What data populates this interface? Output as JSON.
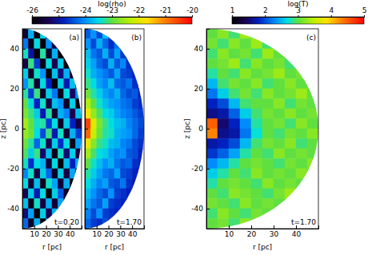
{
  "chart_data": [
    {
      "type": "heatmap",
      "label": "(a)",
      "annotation": "t=0.20",
      "x_label": "r [pc]",
      "y_label": "z [pc]",
      "xlim": [
        0,
        50
      ],
      "ylim": [
        -50,
        50
      ],
      "xticks": [
        10,
        20,
        30,
        40
      ],
      "yticks": [
        -40,
        -20,
        0,
        20,
        40
      ],
      "colorbar": {
        "label": "log(rho)",
        "range": [
          -26,
          -20
        ],
        "ticks": [
          -26,
          -25,
          -24,
          -23,
          -22,
          -21,
          -20
        ]
      },
      "x": [
        2.5,
        7.5,
        12.5,
        17.5,
        22.5,
        27.5,
        32.5,
        37.5,
        42.5,
        47.5
      ],
      "y": [
        47.5,
        42.5,
        37.5,
        32.5,
        27.5,
        22.5,
        17.5,
        12.5,
        7.5,
        2.5,
        -2.5,
        -7.5,
        -12.5,
        -17.5,
        -22.5,
        -27.5,
        -32.5,
        -37.5,
        -42.5,
        -47.5
      ],
      "cells": [
        [
          -25.6,
          -23.8,
          -25.9,
          -23.6,
          -25.2,
          null,
          null,
          null,
          null,
          null
        ],
        [
          -24.2,
          -25.8,
          -23.5,
          -25.9,
          -24.0,
          -25.5,
          -23.9,
          null,
          null,
          null
        ],
        [
          -23.4,
          -25.0,
          -25.9,
          -23.3,
          -25.7,
          -23.8,
          -25.9,
          -24.5,
          null,
          null
        ],
        [
          -25.5,
          -23.2,
          -24.6,
          -25.8,
          -23.5,
          -25.4,
          -23.6,
          -25.9,
          -23.9,
          null
        ],
        [
          -23.6,
          -25.7,
          -23.4,
          -24.0,
          -25.9,
          -23.7,
          -25.2,
          -23.8,
          -25.6,
          null
        ],
        [
          -24.0,
          -23.3,
          -25.6,
          -23.5,
          -24.8,
          -25.9,
          -23.6,
          -24.9,
          -23.7,
          -25.8
        ],
        [
          -23.3,
          -24.6,
          -23.2,
          -25.7,
          -23.6,
          -24.2,
          -25.8,
          -23.5,
          -25.3,
          -24.0
        ],
        [
          -23.0,
          -23.5,
          -24.8,
          -23.4,
          -25.5,
          -23.7,
          -24.0,
          -25.7,
          -23.6,
          -25.9
        ],
        [
          -22.8,
          -23.2,
          -23.6,
          -24.9,
          -23.3,
          -25.6,
          -23.8,
          -24.1,
          -25.4,
          -23.7
        ],
        [
          -22.5,
          -23.0,
          -23.4,
          -23.3,
          -24.6,
          -23.5,
          -25.7,
          -23.6,
          -24.8,
          -25.5
        ],
        [
          -22.6,
          -22.9,
          -23.5,
          -24.5,
          -23.2,
          -24.9,
          -23.4,
          -25.6,
          -23.8,
          -24.6
        ],
        [
          -22.9,
          -23.3,
          -24.3,
          -23.4,
          -25.4,
          -23.6,
          -24.7,
          -23.5,
          -25.8,
          -23.9
        ],
        [
          -23.1,
          -23.6,
          -23.2,
          -25.3,
          -23.7,
          -25.8,
          -23.4,
          -25.2,
          -23.6,
          -25.5
        ],
        [
          -23.4,
          -24.7,
          -23.5,
          -23.8,
          -25.6,
          -23.5,
          -25.9,
          -23.7,
          -24.8,
          -23.8
        ],
        [
          -24.1,
          -23.4,
          -25.5,
          -23.6,
          -24.3,
          -25.7,
          -23.6,
          -25.5,
          -23.9,
          -25.7
        ],
        [
          -23.5,
          -25.6,
          -23.7,
          -25.8,
          -23.4,
          -23.9,
          -25.6,
          -23.8,
          -25.9,
          null
        ],
        [
          -25.4,
          -23.6,
          -24.9,
          -23.5,
          -25.9,
          -23.6,
          -24.4,
          -25.7,
          -23.7,
          null
        ],
        [
          -23.7,
          -25.8,
          -23.4,
          -25.5,
          -23.8,
          -25.6,
          -23.9,
          -25.8,
          null,
          null
        ],
        [
          -25.2,
          -23.9,
          -25.9,
          -23.6,
          -25.4,
          -23.8,
          -25.9,
          null,
          null,
          null
        ],
        [
          -24.3,
          -25.7,
          -23.8,
          -25.9,
          -24.0,
          null,
          null,
          null,
          null,
          null
        ]
      ]
    },
    {
      "type": "heatmap",
      "label": "(b)",
      "annotation": "t=1.70",
      "x_label": "r [pc]",
      "tick_labels": "x",
      "xlim": [
        0,
        50
      ],
      "ylim": [
        -50,
        50
      ],
      "xticks": [
        10,
        20,
        30,
        40
      ],
      "yticks": [
        -40,
        -20,
        0,
        20,
        40
      ],
      "x": [
        2.5,
        7.5,
        12.5,
        17.5,
        22.5,
        27.5,
        32.5,
        37.5,
        42.5,
        47.5
      ],
      "y": [
        47.5,
        42.5,
        37.5,
        32.5,
        27.5,
        22.5,
        17.5,
        12.5,
        7.5,
        2.5,
        -2.5,
        -7.5,
        -12.5,
        -17.5,
        -22.5,
        -27.5,
        -32.5,
        -37.5,
        -42.5,
        -47.5
      ],
      "cells": [
        [
          -24.4,
          -24.0,
          -24.5,
          -23.7,
          -24.6,
          null,
          null,
          null,
          null,
          null
        ],
        [
          -24.0,
          -24.5,
          -23.8,
          -24.3,
          -24.7,
          -24.2,
          -24.8,
          null,
          null,
          null
        ],
        [
          -23.7,
          -24.2,
          -24.4,
          -23.8,
          -24.5,
          -23.9,
          -24.6,
          -24.8,
          null,
          null
        ],
        [
          -23.6,
          -23.9,
          -24.3,
          -24.5,
          -23.8,
          -24.4,
          -24.1,
          -24.7,
          -24.9,
          null
        ],
        [
          -23.4,
          -23.8,
          -24.0,
          -24.2,
          -24.4,
          -23.9,
          -24.5,
          -24.6,
          -24.8,
          null
        ],
        [
          -23.2,
          -23.5,
          -23.9,
          -24.1,
          -23.7,
          -24.3,
          -24.4,
          -24.2,
          -24.7,
          -24.9
        ],
        [
          -22.9,
          -23.3,
          -23.6,
          -23.9,
          -24.1,
          -23.8,
          -24.3,
          -24.5,
          -24.4,
          -24.8
        ],
        [
          -22.4,
          -23.0,
          -23.4,
          -23.7,
          -23.9,
          -24.0,
          -24.2,
          -24.3,
          -24.6,
          -24.7
        ],
        [
          -21.8,
          -22.6,
          -23.1,
          -23.5,
          -23.6,
          -23.9,
          -24.1,
          -24.2,
          -24.4,
          -24.6
        ],
        [
          -20.5,
          -22.0,
          -22.8,
          -23.2,
          -23.5,
          -23.7,
          -23.8,
          -24.1,
          -24.3,
          -24.5
        ],
        [
          -20.8,
          -22.2,
          -22.9,
          -23.3,
          -23.4,
          -23.8,
          -23.9,
          -24.0,
          -24.3,
          -24.6
        ],
        [
          -21.9,
          -22.7,
          -23.2,
          -23.4,
          -23.7,
          -23.8,
          -24.1,
          -24.2,
          -24.5,
          -24.7
        ],
        [
          -22.5,
          -23.1,
          -23.5,
          -23.6,
          -23.9,
          -24.1,
          -24.0,
          -24.4,
          -24.5,
          -24.8
        ],
        [
          -23.0,
          -23.4,
          -23.7,
          -24.0,
          -23.8,
          -24.2,
          -24.4,
          -24.3,
          -24.7,
          -24.8
        ],
        [
          -23.3,
          -23.6,
          -23.9,
          -24.2,
          -24.3,
          -23.9,
          -24.5,
          -24.6,
          -24.8,
          -24.9
        ],
        [
          -23.5,
          -23.8,
          -24.1,
          -23.9,
          -24.4,
          -24.5,
          -24.2,
          -24.7,
          -24.9,
          null
        ],
        [
          -23.7,
          -24.0,
          -24.3,
          -24.5,
          -24.0,
          -24.6,
          -24.7,
          -24.8,
          -24.9,
          null
        ],
        [
          -23.9,
          -24.2,
          -24.4,
          -23.9,
          -24.6,
          -24.7,
          -24.8,
          -24.9,
          null,
          null
        ],
        [
          -24.1,
          -24.5,
          -24.0,
          -24.6,
          -24.7,
          -24.8,
          -24.9,
          null,
          null,
          null
        ],
        [
          -24.3,
          -24.6,
          -24.7,
          -24.5,
          -24.8,
          null,
          null,
          null,
          null,
          null
        ]
      ]
    },
    {
      "type": "heatmap",
      "label": "(c)",
      "annotation": "t=1.70",
      "x_label": "r [pc]",
      "y_label": "z [pc]",
      "xlim": [
        0,
        50
      ],
      "ylim": [
        -50,
        50
      ],
      "xticks": [
        10,
        20,
        30,
        40
      ],
      "yticks": [
        -40,
        -20,
        0,
        20,
        40
      ],
      "colorbar": {
        "label": "log(T)",
        "range": [
          1,
          5
        ],
        "ticks": [
          1,
          2,
          3,
          4,
          5
        ]
      },
      "x": [
        2.5,
        7.5,
        12.5,
        17.5,
        22.5,
        27.5,
        32.5,
        37.5,
        42.5,
        47.5
      ],
      "y": [
        47.5,
        42.5,
        37.5,
        32.5,
        27.5,
        22.5,
        17.5,
        12.5,
        7.5,
        2.5,
        -2.5,
        -7.5,
        -12.5,
        -17.5,
        -22.5,
        -27.5,
        -32.5,
        -37.5,
        -42.5,
        -47.5
      ],
      "cells": [
        [
          3.0,
          3.2,
          2.9,
          3.3,
          3.0,
          null,
          null,
          null,
          null,
          null
        ],
        [
          3.1,
          2.9,
          3.2,
          3.0,
          3.3,
          2.9,
          3.1,
          null,
          null,
          null
        ],
        [
          2.9,
          3.2,
          3.0,
          3.1,
          2.9,
          3.3,
          3.0,
          3.2,
          null,
          null
        ],
        [
          3.0,
          3.1,
          3.3,
          2.9,
          3.2,
          3.0,
          3.1,
          2.9,
          3.2,
          null
        ],
        [
          2.8,
          3.0,
          2.9,
          3.2,
          3.0,
          3.1,
          3.3,
          3.0,
          3.1,
          null
        ],
        [
          2.5,
          2.9,
          3.1,
          3.0,
          3.2,
          2.9,
          3.0,
          3.2,
          3.0,
          3.1
        ],
        [
          2.2,
          2.6,
          2.9,
          3.1,
          2.9,
          3.2,
          3.0,
          3.1,
          3.3,
          3.0
        ],
        [
          1.8,
          2.0,
          2.5,
          2.9,
          3.0,
          3.0,
          3.2,
          2.9,
          3.1,
          3.0
        ],
        [
          1.6,
          1.7,
          2.1,
          2.6,
          2.9,
          3.1,
          3.0,
          3.2,
          3.0,
          3.1
        ],
        [
          4.5,
          1.5,
          1.8,
          2.3,
          2.8,
          3.0,
          3.1,
          2.9,
          3.2,
          3.0
        ],
        [
          4.3,
          1.6,
          1.7,
          2.2,
          2.7,
          3.0,
          2.9,
          3.1,
          3.0,
          3.2
        ],
        [
          1.7,
          1.8,
          2.0,
          2.5,
          2.9,
          3.1,
          3.0,
          3.2,
          2.9,
          3.0
        ],
        [
          1.9,
          2.1,
          2.4,
          2.8,
          3.0,
          2.9,
          3.2,
          3.0,
          3.1,
          3.0
        ],
        [
          2.3,
          2.5,
          2.8,
          3.0,
          3.1,
          3.0,
          2.9,
          3.1,
          3.0,
          3.2
        ],
        [
          2.6,
          2.8,
          3.0,
          2.9,
          3.2,
          3.0,
          3.1,
          3.0,
          3.2,
          3.0
        ],
        [
          2.8,
          3.0,
          3.1,
          3.0,
          2.9,
          3.2,
          3.0,
          3.1,
          3.0,
          null
        ],
        [
          3.0,
          2.9,
          3.2,
          3.1,
          3.0,
          2.9,
          3.1,
          3.3,
          3.0,
          null
        ],
        [
          3.1,
          3.0,
          2.9,
          3.2,
          3.0,
          3.1,
          3.0,
          3.2,
          null,
          null
        ],
        [
          2.9,
          3.2,
          3.0,
          2.9,
          3.1,
          3.0,
          3.2,
          null,
          null,
          null
        ],
        [
          3.0,
          3.1,
          2.9,
          3.2,
          3.0,
          null,
          null,
          null,
          null,
          null
        ]
      ]
    }
  ]
}
